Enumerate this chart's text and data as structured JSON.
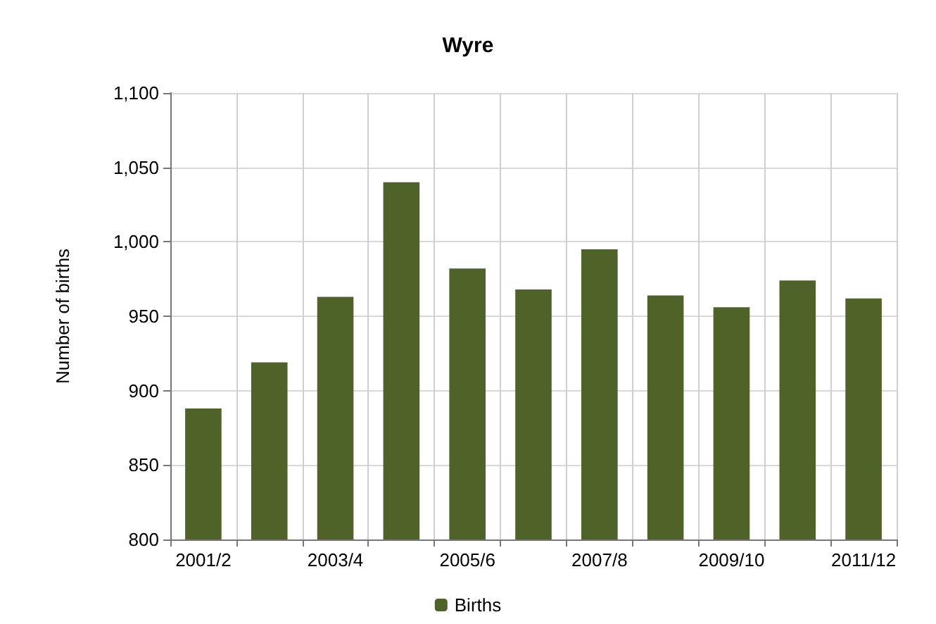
{
  "chart_data": {
    "type": "bar",
    "title": "Wyre",
    "ylabel": "Number of births",
    "categories": [
      "2001/2",
      null,
      "2003/4",
      null,
      "2005/6",
      null,
      "2007/8",
      null,
      "2009/10",
      null,
      "2011/12"
    ],
    "series": [
      {
        "name": "Births",
        "color": "#4f6228",
        "values": [
          888,
          919,
          963,
          1040,
          982,
          968,
          995,
          964,
          956,
          974,
          962
        ]
      }
    ],
    "ylim": [
      800,
      1100
    ],
    "yticks": [
      {
        "value": 800,
        "label": "800"
      },
      {
        "value": 850,
        "label": "850"
      },
      {
        "value": 900,
        "label": "900"
      },
      {
        "value": 950,
        "label": "950"
      },
      {
        "value": 1000,
        "label": "1,000"
      },
      {
        "value": 1050,
        "label": "1,050"
      },
      {
        "value": 1100,
        "label": "1,100"
      }
    ],
    "grid": true,
    "legend": "bottom"
  }
}
